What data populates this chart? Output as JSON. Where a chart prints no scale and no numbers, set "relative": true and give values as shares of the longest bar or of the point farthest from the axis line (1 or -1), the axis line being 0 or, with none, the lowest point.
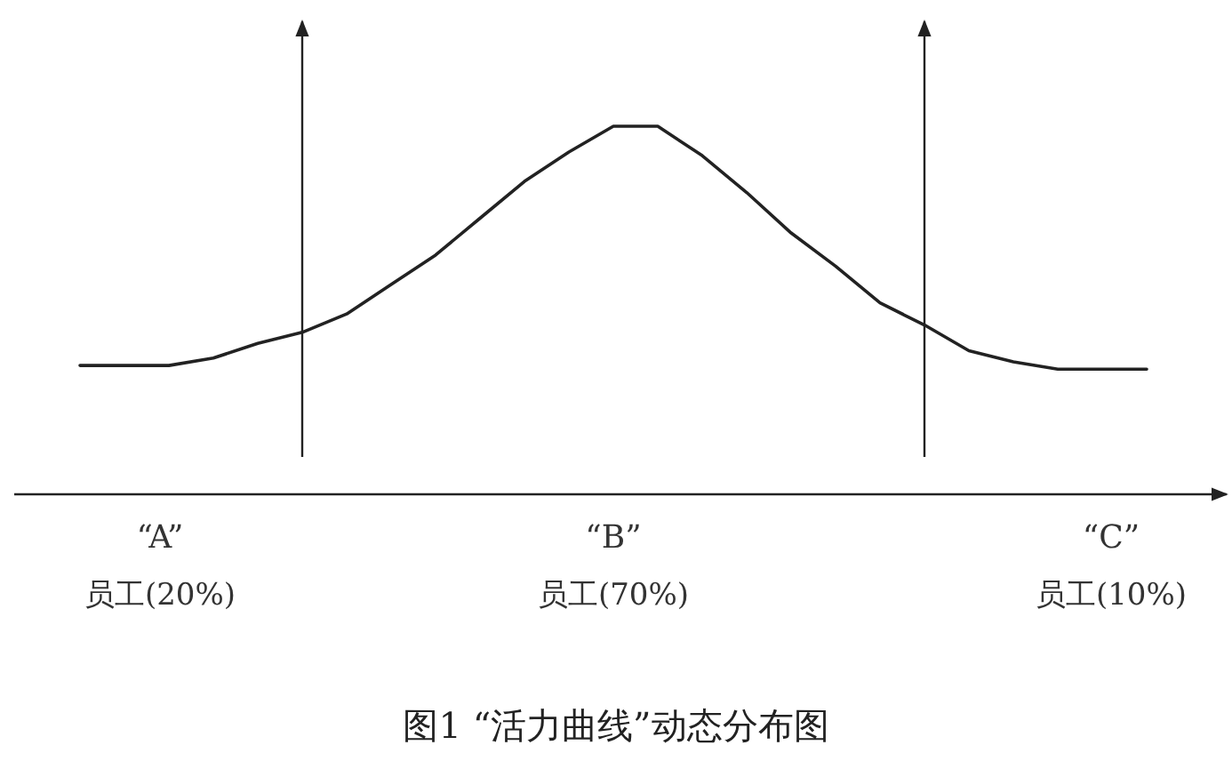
{
  "chart_data": {
    "type": "line",
    "relative": true,
    "title": "图1  “活力曲线”动态分布图",
    "categories": [
      null,
      null,
      null,
      null,
      null,
      null,
      null,
      null,
      null,
      null,
      null,
      null,
      null,
      null,
      null,
      null,
      null,
      null,
      null,
      null,
      null,
      null,
      null,
      null,
      null
    ],
    "values": [
      0.35,
      0.35,
      0.35,
      0.37,
      0.41,
      0.44,
      0.49,
      0.57,
      0.65,
      0.75,
      0.85,
      0.93,
      1,
      1,
      0.92,
      0.82,
      0.71,
      0.62,
      0.52,
      0.46,
      0.39,
      0.36,
      0.34,
      0.34,
      0.34
    ],
    "color": "#222222",
    "annotations": [
      "“A”",
      "员工(20%)",
      "“B”",
      "员工(70%)",
      "“C”",
      "员工(10%)"
    ]
  }
}
